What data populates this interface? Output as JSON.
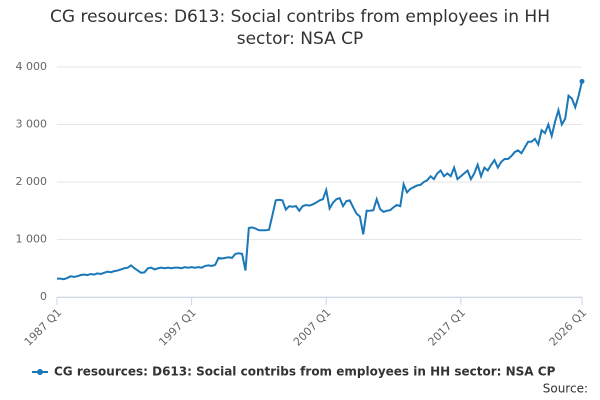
{
  "chart_data": {
    "type": "line",
    "title": "CG resources: D613: Social contribs from employees in HH sector: NSA CP",
    "source": "Source:",
    "categories": [
      "1987 Q1",
      null,
      null,
      null,
      null,
      null,
      null,
      null,
      null,
      null,
      null,
      null,
      null,
      null,
      null,
      null,
      null,
      null,
      null,
      null,
      null,
      null,
      null,
      null,
      null,
      null,
      null,
      null,
      null,
      null,
      null,
      null,
      null,
      null,
      null,
      null,
      null,
      null,
      null,
      null,
      "1997 Q1",
      null,
      null,
      null,
      null,
      null,
      null,
      null,
      null,
      null,
      null,
      null,
      null,
      null,
      null,
      null,
      null,
      null,
      null,
      null,
      null,
      null,
      null,
      null,
      null,
      null,
      null,
      null,
      null,
      null,
      null,
      null,
      null,
      null,
      null,
      null,
      null,
      null,
      null,
      null,
      "2007 Q1",
      null,
      null,
      null,
      null,
      null,
      null,
      null,
      null,
      null,
      null,
      null,
      null,
      null,
      null,
      null,
      null,
      null,
      null,
      null,
      null,
      null,
      null,
      null,
      null,
      null,
      null,
      null,
      null,
      null,
      null,
      null,
      null,
      null,
      null,
      null,
      null,
      null,
      null,
      null,
      "2017 Q1",
      null,
      null,
      null,
      null,
      null,
      null,
      null,
      null,
      null,
      null,
      null,
      null,
      null,
      null,
      null,
      null,
      null,
      null,
      null,
      null,
      null,
      null,
      null,
      null,
      null,
      null,
      null,
      null,
      null,
      null,
      null,
      null,
      null,
      null,
      null,
      "2026 Q1"
    ],
    "series": [
      {
        "name": "CG resources: D613: Social contribs from employees in HH sector: NSA CP",
        "color": "#1a78b8",
        "values": [
          320,
          320,
          310,
          330,
          360,
          350,
          360,
          380,
          390,
          380,
          400,
          390,
          410,
          400,
          420,
          440,
          430,
          450,
          460,
          480,
          500,
          510,
          550,
          500,
          460,
          420,
          430,
          500,
          510,
          480,
          500,
          510,
          500,
          510,
          500,
          510,
          510,
          500,
          520,
          510,
          520,
          510,
          520,
          510,
          540,
          550,
          540,
          560,
          680,
          670,
          680,
          690,
          680,
          750,
          760,
          750,
          460,
          1200,
          1210,
          1190,
          1160,
          1160,
          1160,
          1170,
          1420,
          1680,
          1690,
          1680,
          1520,
          1580,
          1570,
          1580,
          1500,
          1580,
          1600,
          1590,
          1610,
          1640,
          1680,
          1700,
          1860,
          1540,
          1640,
          1700,
          1720,
          1580,
          1670,
          1680,
          1560,
          1450,
          1400,
          1090,
          1500,
          1500,
          1510,
          1700,
          1530,
          1480,
          1500,
          1510,
          1560,
          1600,
          1580,
          1960,
          1820,
          1880,
          1910,
          1940,
          1950,
          2000,
          2030,
          2100,
          2050,
          2150,
          2200,
          2100,
          2150,
          2100,
          2250,
          2050,
          2100,
          2150,
          2200,
          2050,
          2150,
          2300,
          2100,
          2250,
          2200,
          2300,
          2380,
          2250,
          2350,
          2400,
          2400,
          2450,
          2520,
          2550,
          2500,
          2600,
          2700,
          2700,
          2750,
          2650,
          2900,
          2850,
          3000,
          2800,
          3050,
          3250,
          3000,
          3100,
          3500,
          3450,
          3300,
          3500,
          3750
        ]
      }
    ],
    "ylim": [
      0,
      4000
    ],
    "yticks": [
      0,
      {
        "value": 1000,
        "label": "1 000"
      },
      {
        "value": 2000,
        "label": "2 000"
      },
      {
        "value": 3000,
        "label": "3 000"
      },
      {
        "value": 4000,
        "label": "4 000"
      }
    ],
    "grid": true
  }
}
